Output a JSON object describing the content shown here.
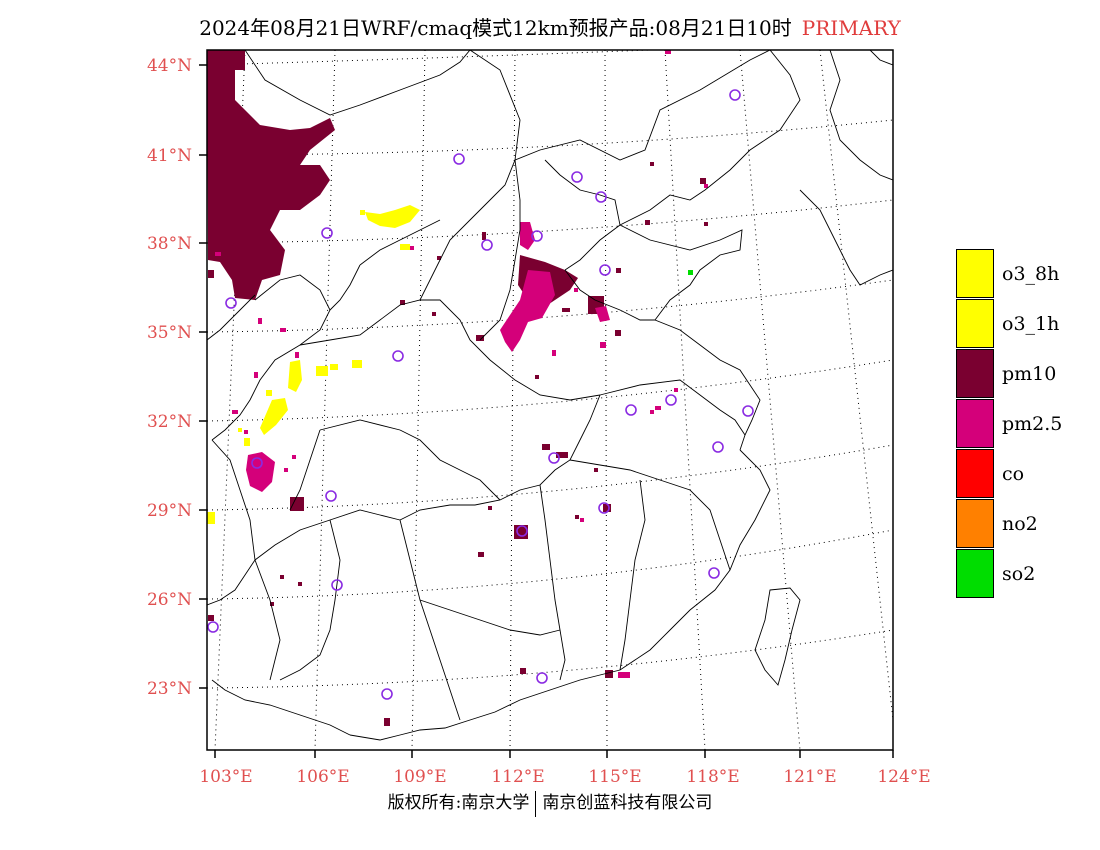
{
  "title": {
    "main": "2024年08月21日WRF/cmaq模式12km预报产品:08月21日10时",
    "mode": "PRIMARY"
  },
  "map": {
    "lat_labels": [
      "44°N",
      "41°N",
      "38°N",
      "35°N",
      "32°N",
      "29°N",
      "26°N",
      "23°N"
    ],
    "lon_labels": [
      "103°E",
      "106°E",
      "109°E",
      "112°E",
      "115°E",
      "118°E",
      "121°E",
      "124°E"
    ]
  },
  "legend": {
    "items": [
      {
        "label": "o3_8h",
        "color": "#ffff00"
      },
      {
        "label": "o3_1h",
        "color": "#ffff00"
      },
      {
        "label": "pm10",
        "color": "#7a0030"
      },
      {
        "label": "pm2.5",
        "color": "#d4007a"
      },
      {
        "label": "co",
        "color": "#ff0000"
      },
      {
        "label": "no2",
        "color": "#ff8000"
      },
      {
        "label": "so2",
        "color": "#00dd00"
      }
    ]
  },
  "footer": {
    "left": "版权所有:南京大学",
    "right": "南京创蓝科技有限公司"
  }
}
